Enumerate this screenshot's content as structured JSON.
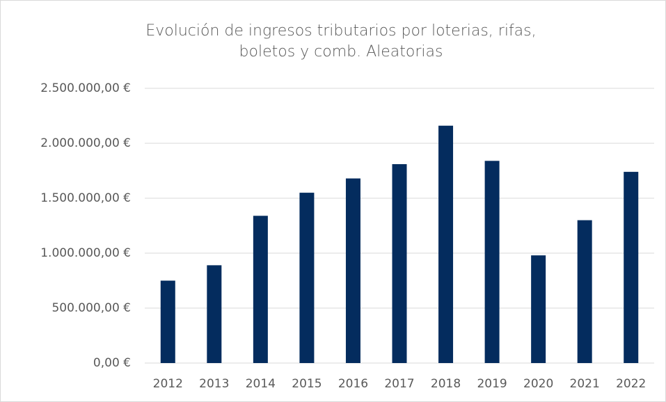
{
  "chart_data": {
    "type": "bar",
    "title": "Evolución de ingresos tributarios por loterias, rifas, boletos y comb. Aleatorias",
    "categories": [
      "2012",
      "2013",
      "2014",
      "2015",
      "2016",
      "2017",
      "2018",
      "2019",
      "2020",
      "2021",
      "2022"
    ],
    "values": [
      750000,
      890000,
      1340000,
      1550000,
      1680000,
      1810000,
      2160000,
      1840000,
      980000,
      1300000,
      1740000
    ],
    "color": "#042c5e",
    "ylim": [
      0,
      2500000
    ],
    "yticks": [
      {
        "value": 0,
        "label": "0,00 €"
      },
      {
        "value": 500000,
        "label": "500.000,00 €"
      },
      {
        "value": 1000000,
        "label": "1.000.000,00 €"
      },
      {
        "value": 1500000,
        "label": "1.500.000,00 €"
      },
      {
        "value": 2000000,
        "label": "2.000.000,00 €"
      },
      {
        "value": 2500000,
        "label": "2.500.000,00 €"
      }
    ],
    "grid": true
  }
}
